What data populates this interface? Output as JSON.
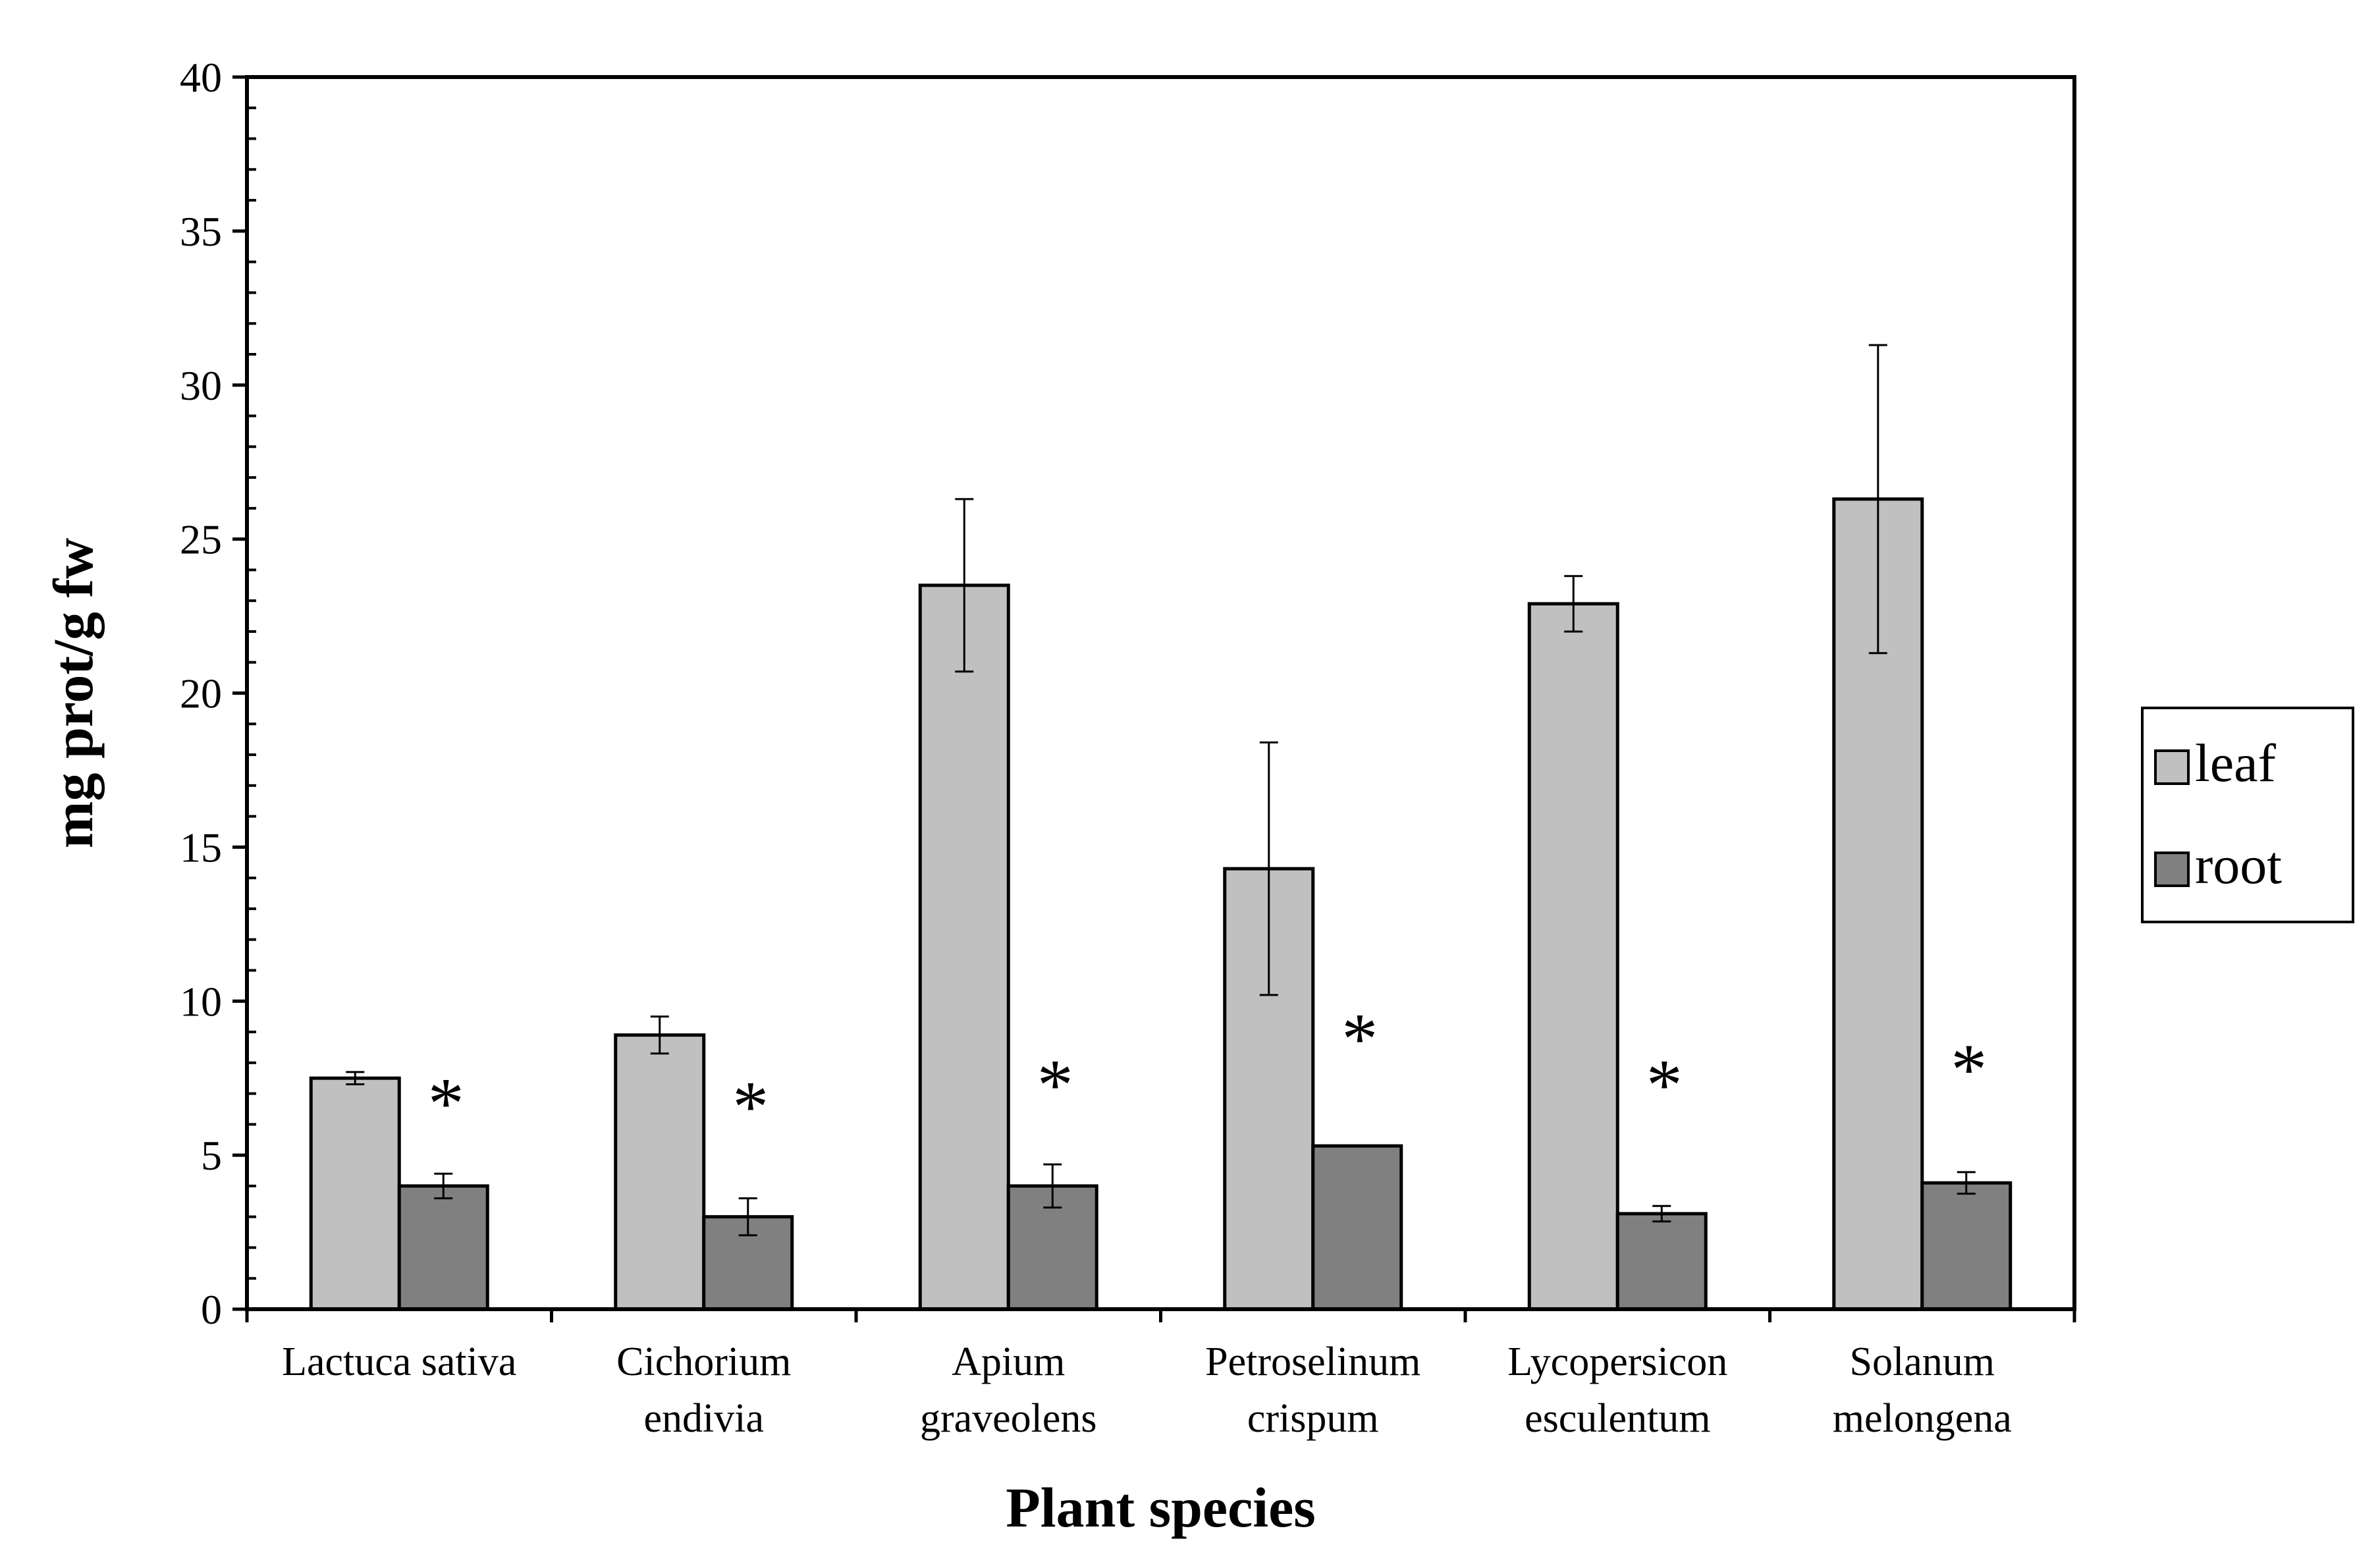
{
  "chart_data": {
    "type": "bar",
    "title": "",
    "xlabel": "Plant species",
    "ylabel": "mg prot/g fw",
    "ylim": [
      0,
      40
    ],
    "y_major_ticks": [
      0,
      5,
      10,
      15,
      20,
      25,
      30,
      35,
      40
    ],
    "y_minor_step": 1,
    "grid": false,
    "legend_position": "right",
    "categories": [
      [
        "Lactuca sativa"
      ],
      [
        "Cichorium",
        "endivia"
      ],
      [
        "Apium",
        "graveolens"
      ],
      [
        "Petroselinum",
        "crispum"
      ],
      [
        "Lycopersicon",
        "esculentum"
      ],
      [
        "Solanum",
        "melongena"
      ]
    ],
    "series": [
      {
        "name": "leaf",
        "color": "#c0c0c0",
        "values": [
          7.5,
          8.9,
          23.5,
          14.3,
          22.9,
          26.3
        ],
        "errors": [
          0.2,
          0.6,
          2.8,
          4.1,
          0.9,
          5.0
        ]
      },
      {
        "name": "root",
        "color": "#808080",
        "values": [
          4.0,
          3.0,
          4.0,
          5.3,
          3.1,
          4.1
        ],
        "errors": [
          0.4,
          0.6,
          0.7,
          0.0,
          0.25,
          0.35
        ]
      }
    ],
    "annotations": [
      {
        "category_index": 0,
        "text": "*",
        "y": 6.7
      },
      {
        "category_index": 1,
        "text": "*",
        "y": 6.6
      },
      {
        "category_index": 2,
        "text": "*",
        "y": 7.3
      },
      {
        "category_index": 3,
        "text": "*",
        "y": 8.8
      },
      {
        "category_index": 4,
        "text": "*",
        "y": 7.3
      },
      {
        "category_index": 5,
        "text": "*",
        "y": 7.8
      }
    ]
  }
}
